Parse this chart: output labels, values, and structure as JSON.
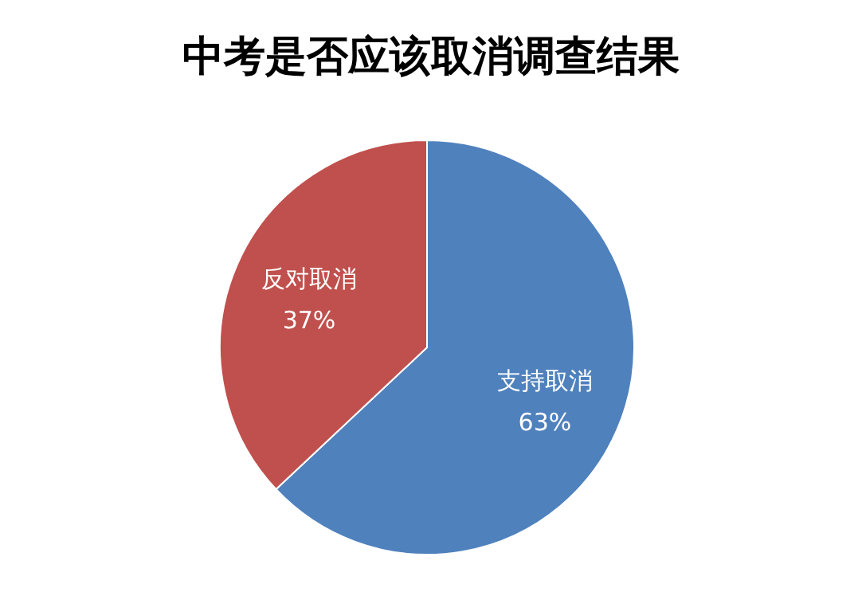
{
  "chart_data": {
    "type": "pie",
    "title": "中考是否应该取消调查结果",
    "categories": [
      "支持取消",
      "反对取消"
    ],
    "values": [
      63,
      37
    ],
    "value_labels": [
      "63%",
      "37%"
    ],
    "colors": [
      "#4f81bd",
      "#c0504d"
    ],
    "legend": false
  }
}
